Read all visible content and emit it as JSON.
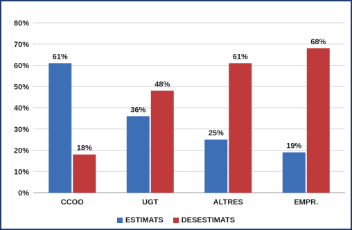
{
  "chart_data": {
    "type": "bar",
    "categories": [
      "CCOO",
      "UGT",
      "ALTRES",
      "EMPR."
    ],
    "series": [
      {
        "name": "ESTIMATS",
        "values": [
          61,
          36,
          25,
          19
        ],
        "labels": [
          "61%",
          "36%",
          "25%",
          "19%"
        ],
        "color": "#3d6fb6"
      },
      {
        "name": "DESESTIMATS",
        "values": [
          18,
          48,
          61,
          68
        ],
        "labels": [
          "18%",
          "48%",
          "61%",
          "68%"
        ],
        "color": "#c0393b"
      }
    ],
    "yticks": [
      "0%",
      "10%",
      "20%",
      "30%",
      "40%",
      "50%",
      "60%",
      "70%",
      "80%"
    ],
    "ylim": [
      0,
      80
    ],
    "grid": true,
    "legend_position": "bottom"
  }
}
